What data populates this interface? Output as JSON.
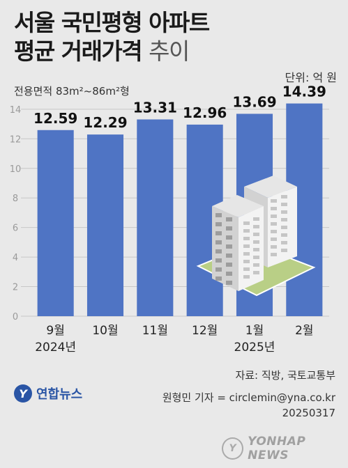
{
  "title_line1": "서울 국민평형 아파트",
  "title_line2_bold": "평균 거래가격",
  "title_line2_light": "추이",
  "unit": "단위: 억 원",
  "subtitle": "전용면적 83m²~86m²형",
  "source": "자료: 직방, 국토교통부",
  "reporter": "원형민 기자 = circlemin@yna.co.kr",
  "date": "20250317",
  "logo_text": "연합뉴스",
  "watermark_text": "YONHAP NEWS",
  "colors": {
    "bar": "#4f74c4",
    "grid": "#c8c8c8",
    "background": "#e9e9e9"
  },
  "icon": "apartment-buildings-icon",
  "chart_data": {
    "type": "bar",
    "categories": [
      "9월",
      "10월",
      "11월",
      "12월",
      "1월",
      "2월"
    ],
    "year_labels": [
      {
        "category": "9월",
        "label": "2024년"
      },
      {
        "category": "1월",
        "label": "2025년"
      }
    ],
    "values": [
      12.59,
      12.29,
      13.31,
      12.96,
      13.69,
      14.39
    ],
    "value_labels": [
      "12.59",
      "12.29",
      "13.31",
      "12.96",
      "13.69",
      "14.39"
    ],
    "yticks": [
      0,
      2,
      4,
      6,
      8,
      10,
      12,
      14
    ],
    "ylim": [
      0,
      14.7
    ],
    "grid": true,
    "title": "서울 국민평형 아파트 평균 거래가격 추이",
    "ylabel": "단위: 억 원"
  }
}
